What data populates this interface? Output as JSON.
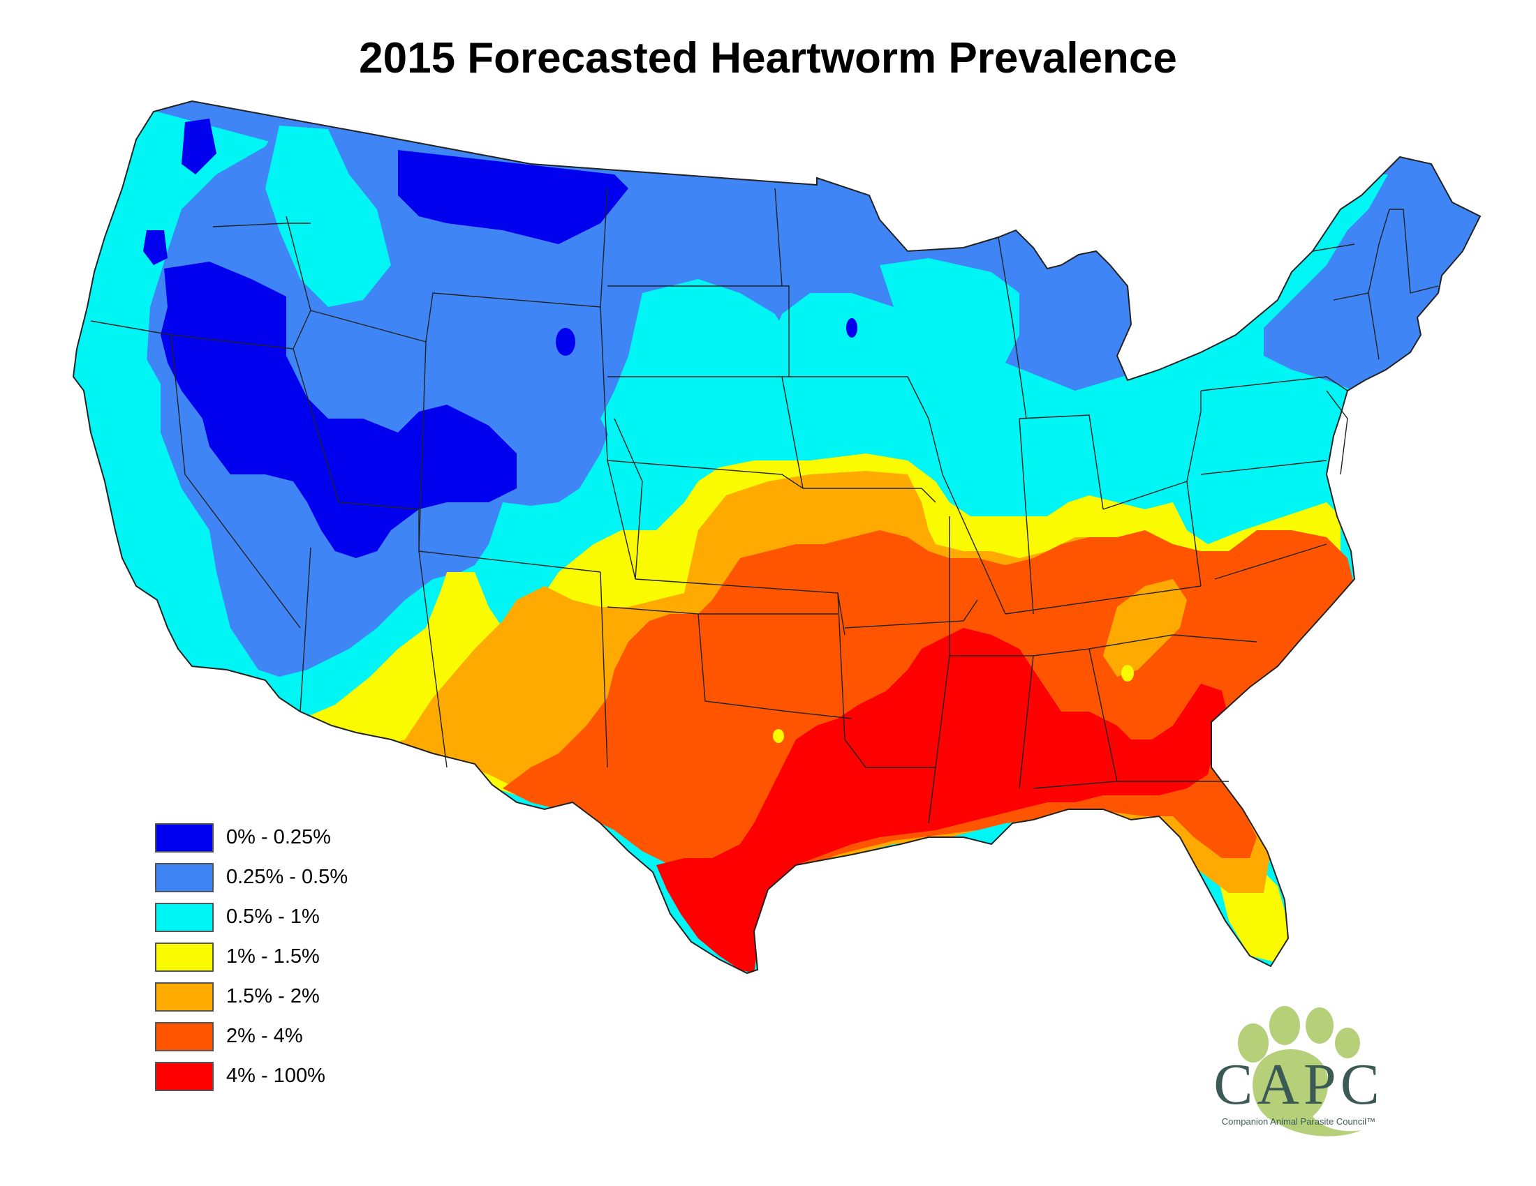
{
  "title": "2015 Forecasted Heartworm Prevalence",
  "colors": {
    "c0": "#0000ee",
    "c1": "#3f85f5",
    "c2": "#00f5f5",
    "c3": "#fafa00",
    "c4": "#ffaa00",
    "c5": "#ff5500",
    "c6": "#ff0000",
    "border": "#222222"
  },
  "legend": {
    "items": [
      {
        "label": "0% - 0.25%",
        "color": "#0000ee"
      },
      {
        "label": "0.25% - 0.5%",
        "color": "#3f85f5"
      },
      {
        "label": "0.5% - 1%",
        "color": "#00f5f5"
      },
      {
        "label": "1% - 1.5%",
        "color": "#fafa00"
      },
      {
        "label": "1.5% - 2%",
        "color": "#ffaa00"
      },
      {
        "label": "2% - 4%",
        "color": "#ff5500"
      },
      {
        "label": "4% - 100%",
        "color": "#ff0000"
      }
    ]
  },
  "logo": {
    "name": "CAPC",
    "tagline": "Companion Animal Parasite Council™",
    "icon": "paw-print-icon"
  }
}
